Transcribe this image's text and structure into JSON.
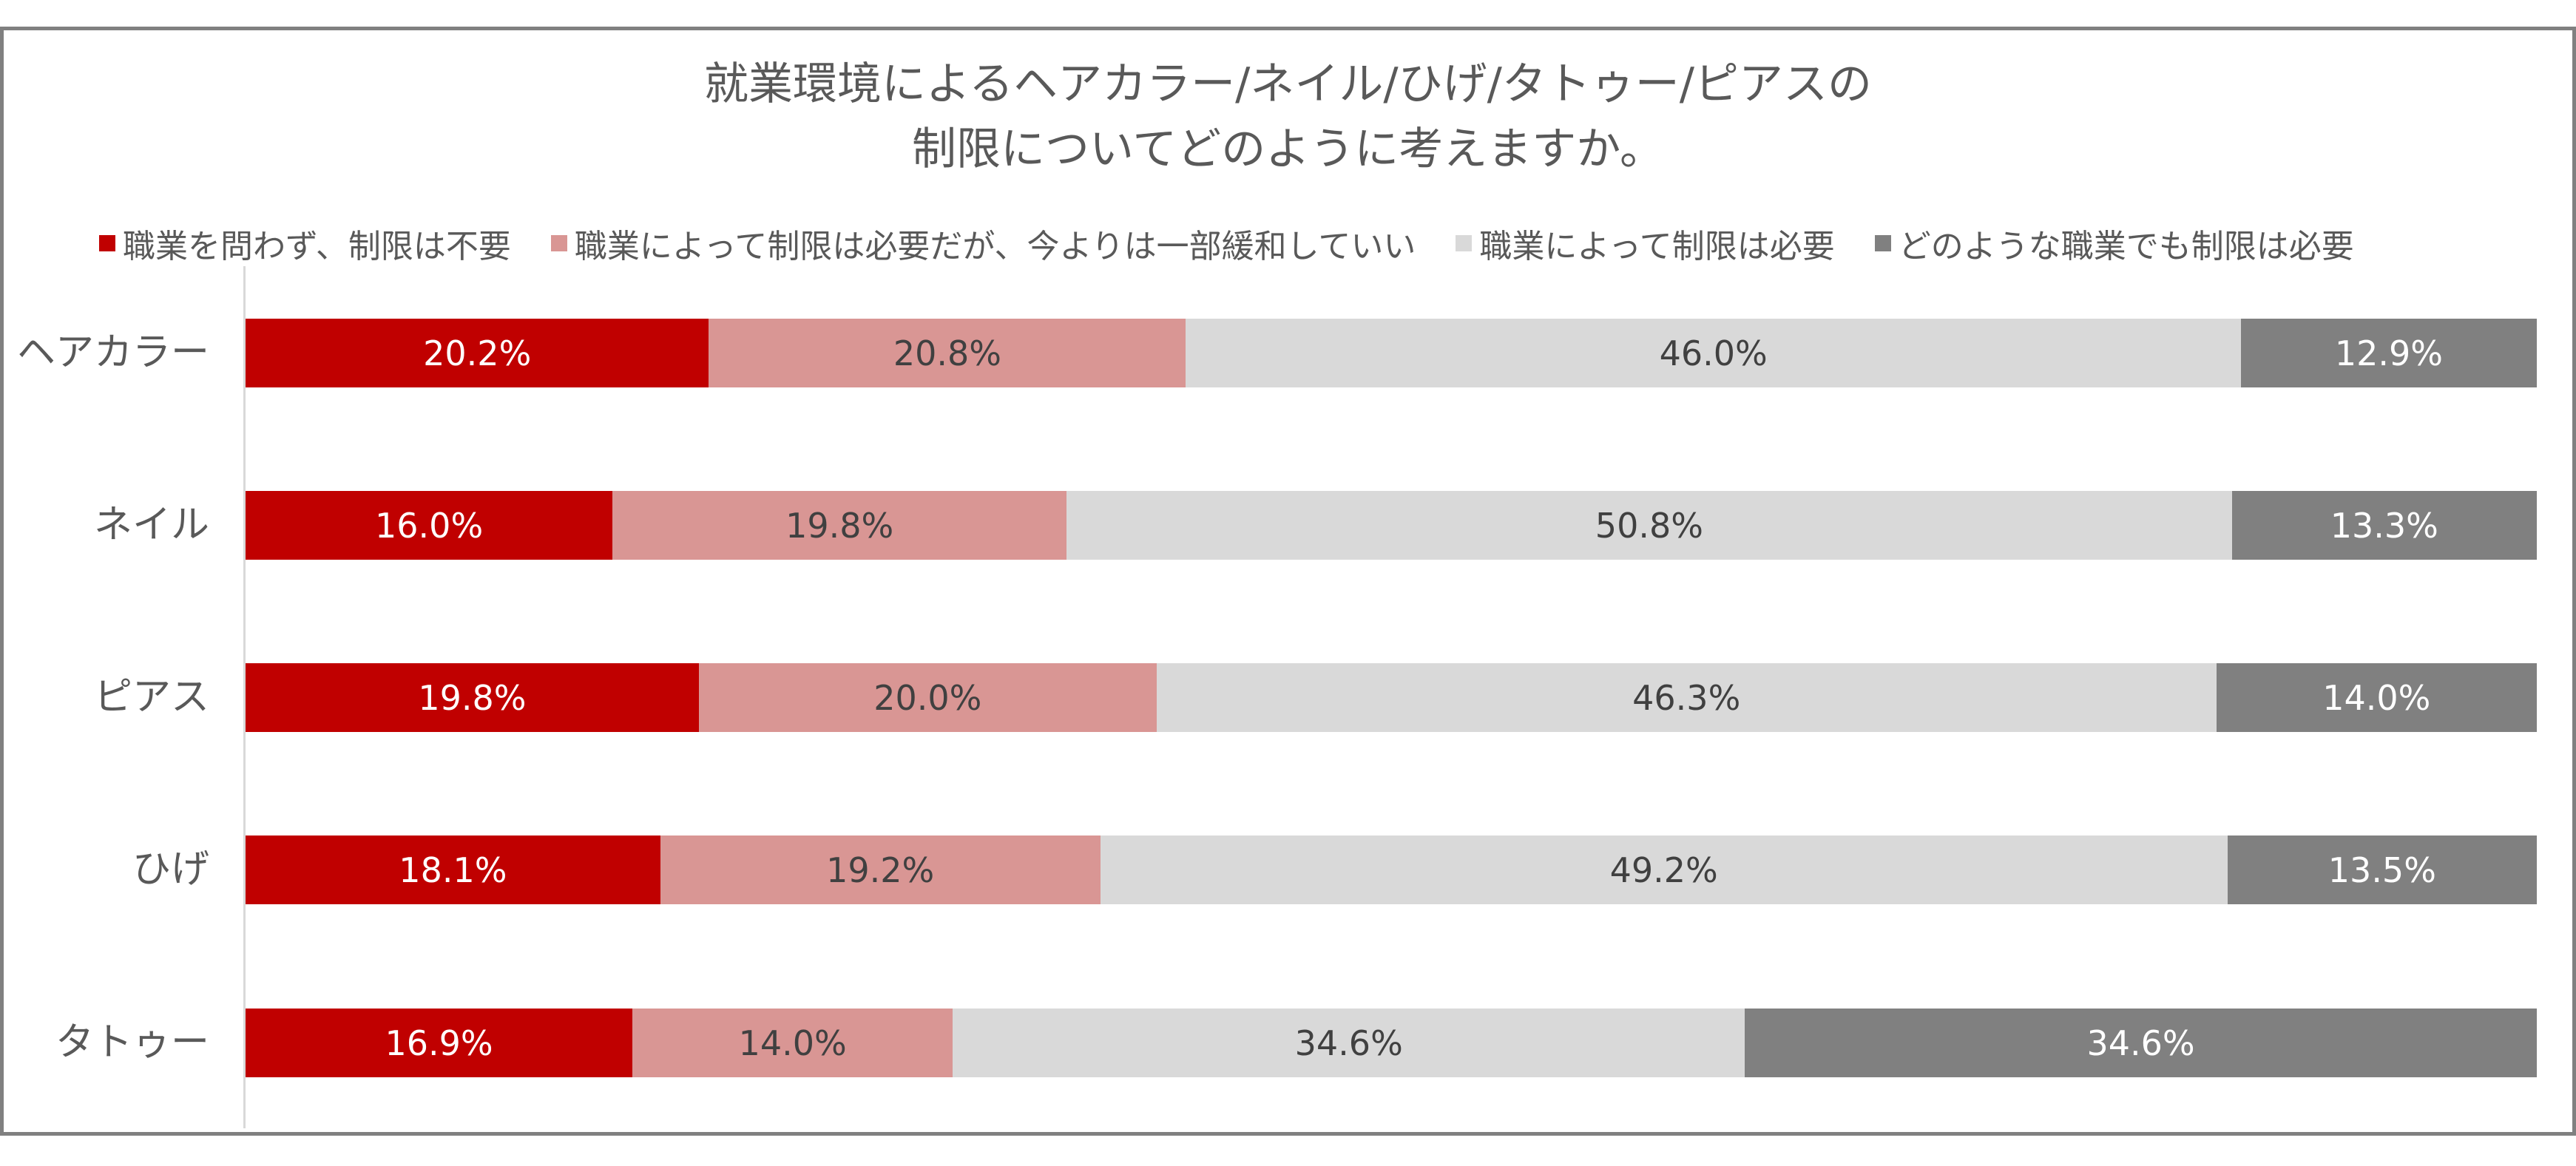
{
  "title": {
    "line1": "就業環境によるヘアカラー/ネイル/ひげ/タトゥー/ピアスの",
    "line2": "制限についてどのように考えますか。"
  },
  "legend": [
    {
      "label": "職業を問わず、制限は不要",
      "color": "#c00000"
    },
    {
      "label": "職業によって制限は必要だが、今よりは一部緩和していい",
      "color": "#d99694"
    },
    {
      "label": "職業によって制限は必要",
      "color": "#d9d9d9"
    },
    {
      "label": "どのような職業でも制限は必要",
      "color": "#808080"
    }
  ],
  "rows": [
    {
      "category": "ヘアカラー",
      "labels": [
        "20.2%",
        "20.8%",
        "46.0%",
        "12.9%"
      ]
    },
    {
      "category": "ネイル",
      "labels": [
        "16.0%",
        "19.8%",
        "50.8%",
        "13.3%"
      ]
    },
    {
      "category": "ピアス",
      "labels": [
        "19.8%",
        "20.0%",
        "46.3%",
        "14.0%"
      ]
    },
    {
      "category": "ひげ",
      "labels": [
        "18.1%",
        "19.2%",
        "49.2%",
        "13.5%"
      ]
    },
    {
      "category": "タトゥー",
      "labels": [
        "16.9%",
        "14.0%",
        "34.6%",
        "34.6%"
      ]
    }
  ],
  "chart_data": {
    "type": "bar",
    "orientation": "horizontal",
    "stacked": "100%",
    "title": "就業環境によるヘアカラー/ネイル/ひげ/タトゥー/ピアスの制限についてどのように考えますか。",
    "xlabel": "",
    "ylabel": "",
    "categories": [
      "ヘアカラー",
      "ネイル",
      "ピアス",
      "ひげ",
      "タトゥー"
    ],
    "series": [
      {
        "name": "職業を問わず、制限は不要",
        "color": "#c00000",
        "values": [
          20.2,
          16.0,
          19.8,
          18.1,
          16.9
        ]
      },
      {
        "name": "職業によって制限は必要だが、今よりは一部緩和していい",
        "color": "#d99694",
        "values": [
          20.8,
          19.8,
          20.0,
          19.2,
          14.0
        ]
      },
      {
        "name": "職業によって制限は必要",
        "color": "#d9d9d9",
        "values": [
          46.0,
          50.8,
          46.3,
          49.2,
          34.6
        ]
      },
      {
        "name": "どのような職業でも制限は必要",
        "color": "#808080",
        "values": [
          12.9,
          13.3,
          14.0,
          13.5,
          34.6
        ]
      }
    ],
    "legend_position": "top",
    "grid": false,
    "data_labels": true,
    "xlim": [
      0,
      100
    ]
  }
}
